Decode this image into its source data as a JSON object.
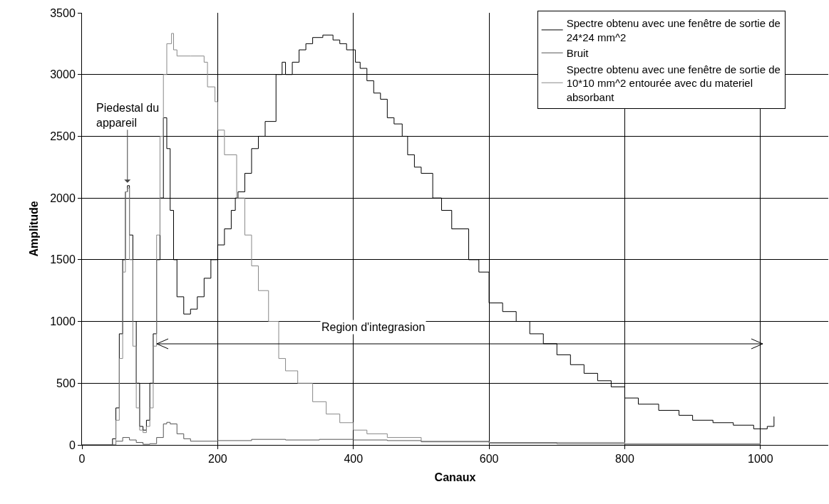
{
  "chart_data": {
    "type": "step",
    "xlabel": "Canaux",
    "ylabel": "Amplitude",
    "xlim": [
      0,
      1100
    ],
    "xticks": [
      0,
      200,
      400,
      600,
      800,
      1000
    ],
    "ylim": [
      0,
      3500
    ],
    "yticks": [
      0,
      500,
      1000,
      1500,
      2000,
      2500,
      3000,
      3500
    ],
    "grid": true,
    "legend": "top right",
    "marker": "none",
    "line_style": "solid",
    "series": [
      {
        "name": "Spectre obtenu avec une fenêtre de sortie de 24*24 mm^2",
        "color": "#000000",
        "x": [
          0,
          40,
          45,
          50,
          55,
          60,
          64,
          67,
          70,
          75,
          80,
          85,
          90,
          95,
          100,
          105,
          110,
          115,
          120,
          125,
          130,
          135,
          140,
          150,
          160,
          170,
          180,
          190,
          200,
          210,
          220,
          226,
          230,
          240,
          250,
          260,
          270,
          286,
          295,
          300,
          310,
          320,
          330,
          340,
          355,
          370,
          380,
          390,
          403,
          410,
          420,
          430,
          440,
          450,
          460,
          472,
          480,
          490,
          500,
          517,
          530,
          545,
          570,
          585,
          600,
          620,
          640,
          660,
          680,
          700,
          720,
          740,
          760,
          780,
          800,
          820,
          850,
          880,
          900,
          930,
          960,
          990,
          1010,
          1020
        ],
        "values": [
          0,
          0,
          50,
          300,
          900,
          1500,
          2050,
          2100,
          1700,
          1000,
          500,
          150,
          120,
          200,
          500,
          900,
          1500,
          2000,
          2650,
          2400,
          1900,
          1500,
          1200,
          1060,
          1100,
          1200,
          1350,
          1500,
          1620,
          1750,
          1900,
          2000,
          2050,
          2200,
          2400,
          2500,
          2620,
          3000,
          3100,
          3000,
          3100,
          3200,
          3250,
          3300,
          3320,
          3280,
          3250,
          3200,
          3100,
          3050,
          2950,
          2850,
          2800,
          2650,
          2600,
          2500,
          2350,
          2250,
          2200,
          2000,
          1900,
          1750,
          1500,
          1400,
          1150,
          1080,
          1000,
          900,
          820,
          730,
          650,
          580,
          520,
          470,
          380,
          330,
          280,
          240,
          200,
          180,
          160,
          130,
          150,
          230
        ]
      },
      {
        "name": "Bruit",
        "color": "#555555",
        "x": [
          0,
          40,
          50,
          60,
          70,
          80,
          90,
          100,
          110,
          120,
          125,
          130,
          140,
          150,
          160,
          200,
          250,
          300,
          350,
          400,
          450,
          500,
          600,
          700,
          800,
          1000
        ],
        "values": [
          0,
          0,
          30,
          60,
          40,
          20,
          5,
          10,
          60,
          170,
          183,
          170,
          90,
          50,
          30,
          35,
          45,
          40,
          45,
          40,
          35,
          25,
          15,
          10,
          5,
          3
        ]
      },
      {
        "name": "Spectre obtenu avec une fenêtre de sortie de 10*10 mm^2 entourée avec du materiel absorbant",
        "color": "#888888",
        "x": [
          0,
          40,
          50,
          55,
          60,
          64,
          67,
          70,
          75,
          80,
          85,
          90,
          95,
          100,
          105,
          110,
          115,
          120,
          125,
          132,
          135,
          140,
          160,
          180,
          185,
          196,
          200,
          210,
          228,
          240,
          250,
          260,
          275,
          290,
          300,
          318,
          340,
          360,
          380,
          400,
          420,
          450,
          500,
          600,
          800,
          1000
        ],
        "values": [
          0,
          0,
          200,
          700,
          1400,
          2050,
          2080,
          1500,
          800,
          300,
          120,
          100,
          150,
          300,
          800,
          1700,
          2500,
          3000,
          3250,
          3333,
          3200,
          3150,
          3150,
          3100,
          2900,
          2780,
          2550,
          2350,
          2000,
          1700,
          1450,
          1250,
          1000,
          700,
          600,
          500,
          350,
          250,
          180,
          120,
          90,
          60,
          30,
          20,
          10,
          5
        ]
      }
    ],
    "annotations": [
      {
        "text": "Piedestal du appareil",
        "x": 67,
        "y": 2100
      },
      "Region d'integrasion"
    ]
  }
}
